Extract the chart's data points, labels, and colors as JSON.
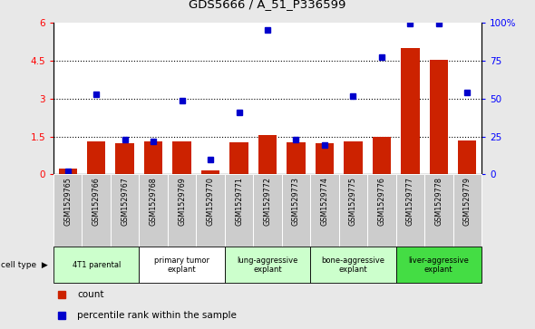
{
  "title": "GDS5666 / A_51_P336599",
  "samples": [
    "GSM1529765",
    "GSM1529766",
    "GSM1529767",
    "GSM1529768",
    "GSM1529769",
    "GSM1529770",
    "GSM1529771",
    "GSM1529772",
    "GSM1529773",
    "GSM1529774",
    "GSM1529775",
    "GSM1529776",
    "GSM1529777",
    "GSM1529778",
    "GSM1529779"
  ],
  "bar_values": [
    0.22,
    1.32,
    1.25,
    1.3,
    1.3,
    0.15,
    1.28,
    1.57,
    1.27,
    1.22,
    1.32,
    1.5,
    5.0,
    4.55,
    1.33
  ],
  "blue_values": [
    2.0,
    53.0,
    23.0,
    22.0,
    48.5,
    10.0,
    41.0,
    95.5,
    23.0,
    19.5,
    51.5,
    77.5,
    99.5,
    99.5,
    54.0
  ],
  "bar_color": "#cc2200",
  "blue_color": "#0000cc",
  "ylim_left": [
    0,
    6
  ],
  "ylim_right": [
    0,
    100
  ],
  "yticks_left": [
    0,
    1.5,
    3.0,
    4.5,
    6.0
  ],
  "ytick_labels_left": [
    "0",
    "1.5",
    "3",
    "4.5",
    "6"
  ],
  "yticks_right": [
    0,
    25,
    50,
    75,
    100
  ],
  "ytick_labels_right": [
    "0",
    "25",
    "50",
    "75",
    "100%"
  ],
  "cell_type_groups": [
    {
      "label": "4T1 parental",
      "start": 0,
      "end": 2,
      "color": "#ccffcc"
    },
    {
      "label": "primary tumor\nexplant",
      "start": 3,
      "end": 5,
      "color": "#ffffff"
    },
    {
      "label": "lung-aggressive\nexplant",
      "start": 6,
      "end": 8,
      "color": "#ccffcc"
    },
    {
      "label": "bone-aggressive\nexplant",
      "start": 9,
      "end": 11,
      "color": "#ccffcc"
    },
    {
      "label": "liver-aggressive\nexplant",
      "start": 12,
      "end": 14,
      "color": "#44dd44"
    }
  ],
  "legend_count_label": "count",
  "legend_pct_label": "percentile rank within the sample",
  "xlabel_cell_type": "cell type",
  "background_color": "#e8e8e8",
  "plot_bg_color": "#ffffff",
  "sample_row_color": "#cccccc"
}
